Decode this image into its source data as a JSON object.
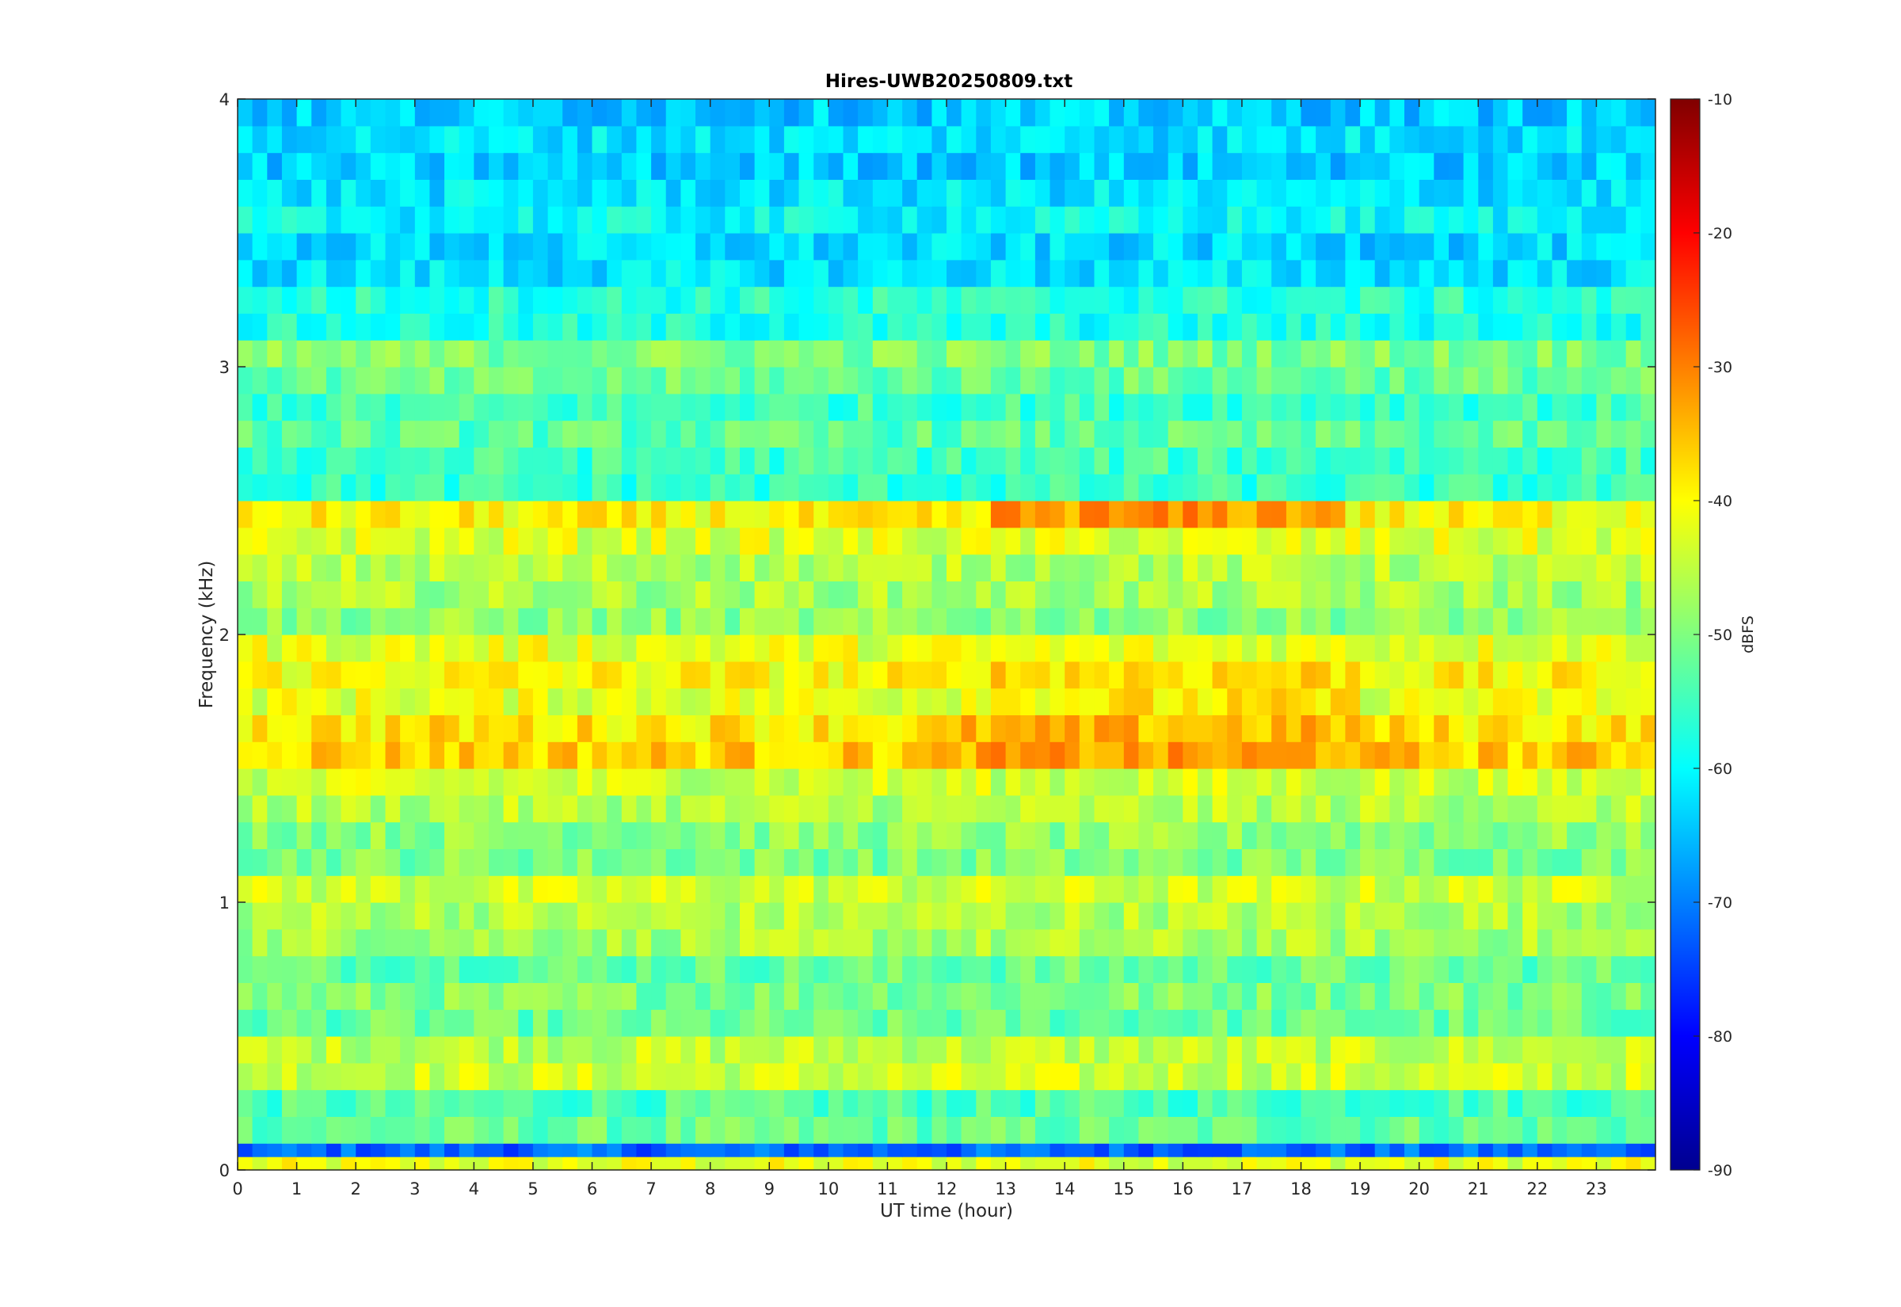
{
  "chart_data": {
    "type": "heatmap",
    "title": "Hires-UWB20250809.txt",
    "xlabel": "UT time (hour)",
    "ylabel": "Frequency (kHz)",
    "colorbar_label": "dBFS",
    "xlim": [
      0,
      24
    ],
    "ylim": [
      0,
      4
    ],
    "clim": [
      -90,
      -10
    ],
    "colormap": "jet",
    "x_ticks": [
      0,
      1,
      2,
      3,
      4,
      5,
      6,
      7,
      8,
      9,
      10,
      11,
      12,
      13,
      14,
      15,
      16,
      17,
      18,
      19,
      20,
      21,
      22,
      23
    ],
    "x_tick_labels": [
      "0",
      "1",
      "2",
      "3",
      "4",
      "5",
      "6",
      "7",
      "8",
      "9",
      "10",
      "11",
      "12",
      "13",
      "14",
      "15",
      "16",
      "17",
      "18",
      "19",
      "20",
      "21",
      "22",
      "23"
    ],
    "y_ticks": [
      0,
      1,
      2,
      3,
      4
    ],
    "y_tick_labels": [
      "0",
      "1",
      "2",
      "3",
      "4"
    ],
    "colorbar_ticks": [
      -90,
      -80,
      -70,
      -60,
      -50,
      -40,
      -30,
      -20,
      -10
    ],
    "colorbar_tick_labels": [
      "-90",
      "-80",
      "-70",
      "-60",
      "-50",
      "-40",
      "-30",
      "-20",
      "-10"
    ],
    "grid": false,
    "frequency_bands_khz": [
      {
        "f": 0.05,
        "level": -42
      },
      {
        "f": 0.1,
        "level": -72
      },
      {
        "f": 0.15,
        "level": -52
      },
      {
        "f": 0.25,
        "level": -54
      },
      {
        "f": 0.35,
        "level": -44
      },
      {
        "f": 0.45,
        "level": -45
      },
      {
        "f": 0.55,
        "level": -52
      },
      {
        "f": 0.65,
        "level": -50
      },
      {
        "f": 0.75,
        "level": -52
      },
      {
        "f": 0.85,
        "level": -47
      },
      {
        "f": 0.95,
        "level": -46
      },
      {
        "f": 1.05,
        "level": -44
      },
      {
        "f": 1.15,
        "level": -50
      },
      {
        "f": 1.25,
        "level": -49
      },
      {
        "f": 1.35,
        "level": -46
      },
      {
        "f": 1.45,
        "level": -44
      },
      {
        "f": 1.55,
        "level": -36
      },
      {
        "f": 1.65,
        "level": -38
      },
      {
        "f": 1.75,
        "level": -42
      },
      {
        "f": 1.85,
        "level": -40
      },
      {
        "f": 1.95,
        "level": -42
      },
      {
        "f": 2.05,
        "level": -49
      },
      {
        "f": 2.15,
        "level": -47
      },
      {
        "f": 2.25,
        "level": -46
      },
      {
        "f": 2.35,
        "level": -43
      },
      {
        "f": 2.45,
        "level": -40
      },
      {
        "f": 2.55,
        "level": -56
      },
      {
        "f": 2.65,
        "level": -55
      },
      {
        "f": 2.75,
        "level": -53
      },
      {
        "f": 2.85,
        "level": -55
      },
      {
        "f": 2.95,
        "level": -52
      },
      {
        "f": 3.05,
        "level": -50
      },
      {
        "f": 3.15,
        "level": -58
      },
      {
        "f": 3.25,
        "level": -57
      },
      {
        "f": 3.35,
        "level": -62
      },
      {
        "f": 3.45,
        "level": -63
      },
      {
        "f": 3.55,
        "level": -60
      },
      {
        "f": 3.65,
        "level": -62
      },
      {
        "f": 3.75,
        "level": -64
      },
      {
        "f": 3.85,
        "level": -62
      },
      {
        "f": 3.95,
        "level": -64
      }
    ]
  }
}
